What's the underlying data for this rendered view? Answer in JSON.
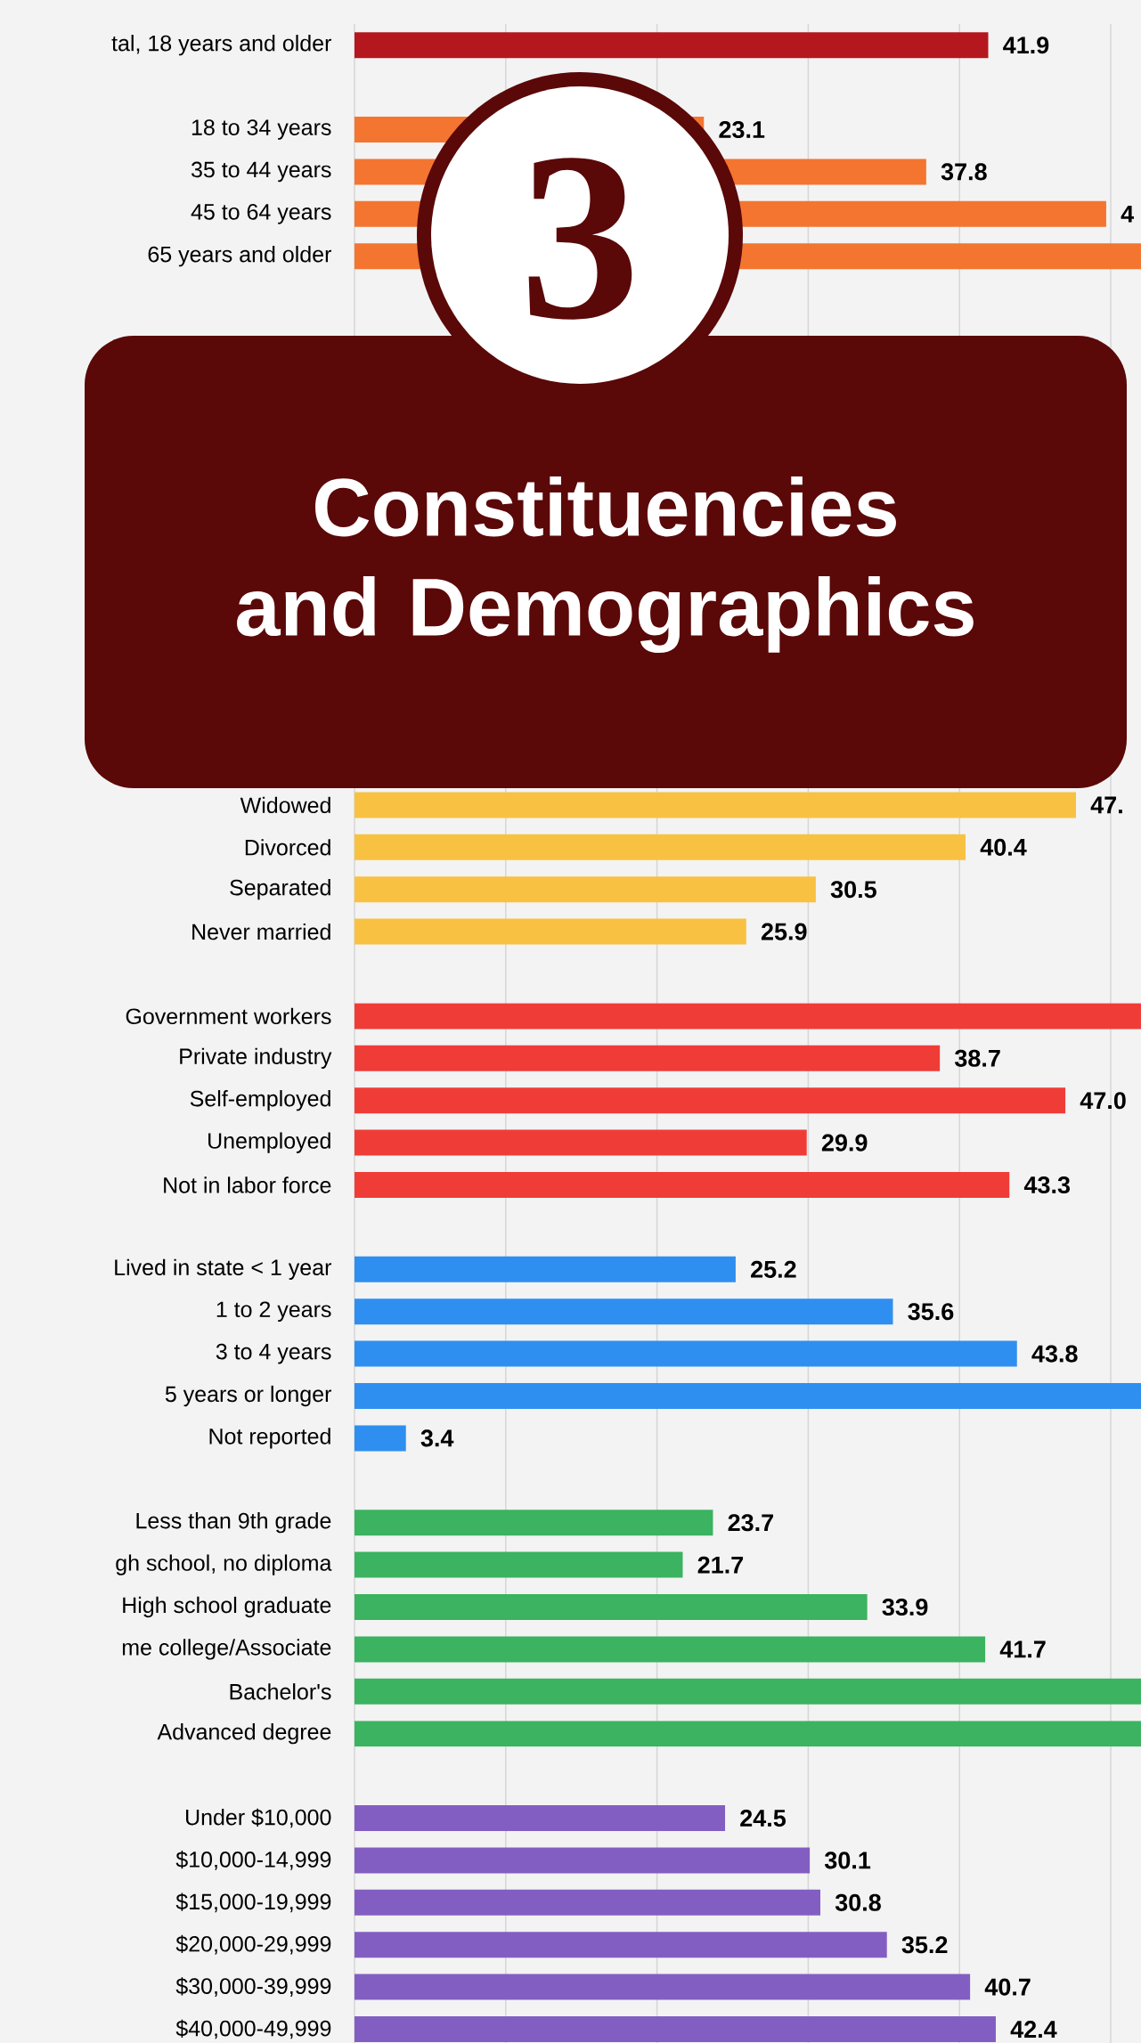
{
  "chart_data": {
    "type": "bar",
    "orientation": "horizontal",
    "title": "Constituencies and Demographics",
    "annotations": [
      "3",
      {
        "text": "4",
        "x": 49.7,
        "y": "45 to 64 years"
      },
      {
        "text": "47.",
        "x": 47.7,
        "y": "Widowed"
      }
    ],
    "categories": [
      "tal, 18 years and older",
      null,
      "18 to 34 years",
      "35 to 44 years",
      "45 to 64 years",
      "65 years and older",
      null,
      null,
      null,
      null,
      null,
      null,
      null,
      null,
      null,
      null,
      null,
      null,
      "Widowed",
      "Divorced",
      "Separated",
      "Never married",
      null,
      "Government workers",
      "Private industry",
      "Self-employed",
      "Unemployed",
      "Not in labor force",
      null,
      "Lived in state < 1 year",
      "1 to 2 years",
      "3 to 4 years",
      "5 years or longer",
      "Not reported",
      null,
      "Less than 9th grade",
      "gh school, no diploma",
      "High school graduate",
      "me college/Associate",
      "Bachelor's",
      "Advanced degree",
      null,
      "Under $10,000",
      "$10,000-14,999",
      "$15,000-19,999",
      "$20,000-29,999",
      "$30,000-39,999",
      "$40,000-49,999"
    ],
    "values": [
      41.9,
      null,
      23.1,
      37.8,
      49.7,
      52,
      null,
      null,
      null,
      null,
      null,
      null,
      null,
      null,
      null,
      null,
      null,
      null,
      47.7,
      40.4,
      30.5,
      25.9,
      null,
      52,
      38.7,
      47.0,
      29.9,
      43.3,
      null,
      25.2,
      35.6,
      43.8,
      52,
      3.4,
      null,
      23.7,
      21.7,
      33.9,
      41.7,
      52,
      52,
      null,
      24.5,
      30.1,
      30.8,
      35.2,
      40.7,
      42.4
    ],
    "value_labels": [
      "41.9",
      null,
      "23.1",
      "37.8",
      null,
      null,
      null,
      null,
      null,
      null,
      null,
      null,
      null,
      null,
      null,
      null,
      null,
      null,
      null,
      "40.4",
      "30.5",
      "25.9",
      null,
      null,
      "38.7",
      "47.0",
      "29.9",
      "43.3",
      null,
      "25.2",
      "35.6",
      "43.8",
      null,
      "3.4",
      null,
      "23.7",
      "21.7",
      "33.9",
      "41.7",
      null,
      null,
      null,
      "24.5",
      "30.1",
      "30.8",
      "35.2",
      "40.7",
      "42.4"
    ],
    "colors": [
      "#b5171e",
      null,
      "#f47530",
      "#f47530",
      "#f47530",
      "#f47530",
      null,
      null,
      null,
      null,
      null,
      null,
      null,
      null,
      null,
      null,
      null,
      null,
      "#f9c142",
      "#f9c142",
      "#f9c142",
      "#f9c142",
      null,
      "#f03c37",
      "#f03c37",
      "#f03c37",
      "#f03c37",
      "#f03c37",
      null,
      "#2f8ff0",
      "#2f8ff0",
      "#2f8ff0",
      "#2f8ff0",
      "#2f8ff0",
      null,
      "#3bb360",
      "#3bb360",
      "#3bb360",
      "#3bb360",
      "#3bb360",
      "#3bb360",
      null,
      "#835ec2",
      "#835ec2",
      "#835ec2",
      "#835ec2",
      "#835ec2",
      "#835ec2"
    ],
    "xlim": [
      0,
      52
    ],
    "xticks": [
      {
        "value": 0,
        "label": null
      },
      {
        "value": 10,
        "label": null
      },
      {
        "value": 20,
        "label": null
      },
      {
        "value": 30,
        "label": null
      },
      {
        "value": 40,
        "label": null
      },
      {
        "value": 50,
        "label": null
      }
    ],
    "grid": "x",
    "tick_labels": "y"
  }
}
